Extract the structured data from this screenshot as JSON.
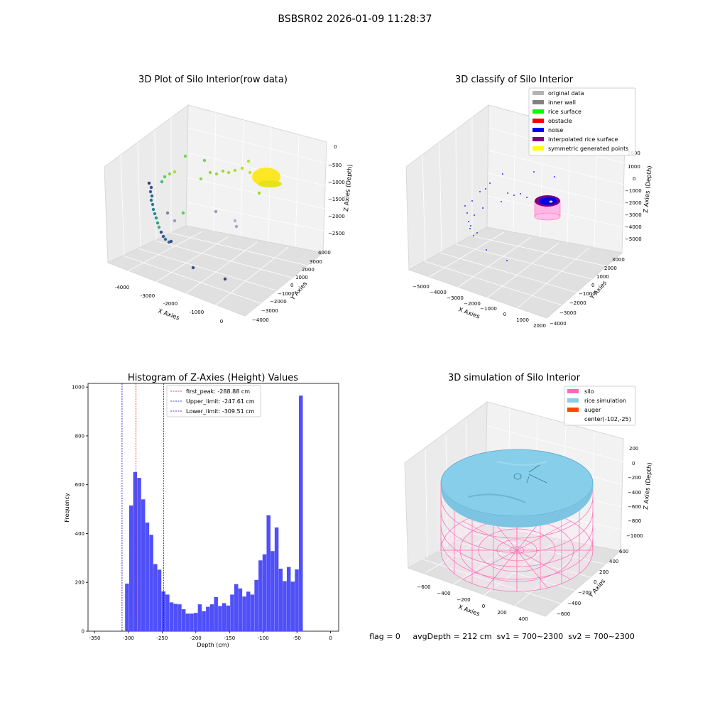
{
  "suptitle": "BSBSR02 2026-01-09 11:28:37",
  "colors": {
    "hist_bar": "#5050f8",
    "first_peak_line": "#ff0000",
    "limit_line": "#0000cc",
    "pane_light": "#f2f2f2",
    "pane_mid": "#ebebeb",
    "pane_dark": "#e0e0e0",
    "silo": "#ff69b4",
    "rice_simulation": "#87ceeb",
    "auger": "#ff4500"
  },
  "chart_data": [
    {
      "type": "scatter",
      "projection": "3d",
      "title": "3D Plot of Silo Interior(row data)",
      "xlabel": "X Axies",
      "ylabel": "Y Axies",
      "zlabel": "Z Axies (Depth)",
      "x_ticks": [
        "-4000",
        "-3000",
        "-2000",
        "-1000",
        "0"
      ],
      "y_ticks": [
        "4000",
        "3000",
        "2000",
        "1000",
        "0",
        "−1000",
        "−2000",
        "−3000",
        "−4000"
      ],
      "z_ticks": [
        "0",
        "−500",
        "−1000",
        "−1500",
        "−2000",
        "−2500"
      ],
      "colormap": "viridis",
      "grid": true
    },
    {
      "type": "scatter",
      "projection": "3d",
      "title": "3D classify of Silo Interior",
      "xlabel": "X Axies",
      "ylabel": "Y Axies",
      "zlabel": "Z Axies (Depth)",
      "x_ticks": [
        "−5000",
        "−4000",
        "−3000",
        "−2000",
        "−1000",
        "0",
        "1000",
        "2000"
      ],
      "y_ticks": [
        "3000",
        "2000",
        "1000",
        "0",
        "−1000",
        "−2000",
        "−3000",
        "−4000"
      ],
      "z_ticks": [
        "2000",
        "1000",
        "0",
        "−1000",
        "−2000",
        "−3000",
        "−4000",
        "−5000"
      ],
      "legend_position": "top-right",
      "legend": [
        {
          "label": "original data",
          "color": "#b3b3b3"
        },
        {
          "label": "inner wall",
          "color": "#808080"
        },
        {
          "label": "rice surface",
          "color": "#00ff00"
        },
        {
          "label": "obstacle",
          "color": "#ff0000"
        },
        {
          "label": "noise",
          "color": "#0000ff"
        },
        {
          "label": "interpolated rice surface",
          "color": "#800080"
        },
        {
          "label": "symmetric generated points",
          "color": "#ffff00"
        }
      ],
      "grid": true
    },
    {
      "type": "bar",
      "title": "Histogram of Z-Axies (Height) Values",
      "xlabel": "Depth (cm)",
      "ylabel": "Frequency",
      "xlim": [
        -360,
        12
      ],
      "ylim": [
        0,
        1015
      ],
      "x_ticks": [
        -350,
        -300,
        -250,
        -200,
        -150,
        -100,
        -50,
        0
      ],
      "y_ticks": [
        0,
        200,
        400,
        600,
        800,
        1000
      ],
      "bin_start": -305,
      "bin_width": 6,
      "values": [
        195,
        515,
        652,
        628,
        540,
        445,
        395,
        275,
        252,
        163,
        150,
        118,
        112,
        110,
        90,
        72,
        72,
        75,
        110,
        82,
        100,
        110,
        140,
        103,
        115,
        105,
        150,
        193,
        175,
        142,
        162,
        150,
        210,
        290,
        315,
        475,
        328,
        425,
        256,
        205,
        263,
        203,
        253,
        965
      ],
      "lines": [
        {
          "label": "first_peak: -288.88 cm",
          "x": -288.88,
          "color": "#ff0000"
        },
        {
          "label": "Upper_limit: -247.61 cm",
          "x": -247.61,
          "color": "#0000cc"
        },
        {
          "label": "Lower_limit: -309.51 cm",
          "x": -309.51,
          "color": "#0000cc"
        }
      ],
      "legend_position": "top-center",
      "grid": false
    },
    {
      "type": "surface",
      "projection": "3d",
      "title": "3D simulation of Silo Interior",
      "xlabel": "X Axies",
      "ylabel": "Y Axies",
      "zlabel": "Z Axies (Depth)",
      "x_ticks": [
        "−600",
        "−400",
        "−200",
        "0",
        "200",
        "400"
      ],
      "y_ticks": [
        "600",
        "400",
        "200",
        "0",
        "−200",
        "−400",
        "−600"
      ],
      "z_ticks": [
        "200",
        "0",
        "−200",
        "−400",
        "−600",
        "−800",
        "−1000"
      ],
      "legend_position": "top-right",
      "legend": [
        {
          "label": "silo",
          "color": "#ff69b4"
        },
        {
          "label": "rice simulation",
          "color": "#87ceeb"
        },
        {
          "label": "auger",
          "color": "#ff4500"
        },
        {
          "label": "center(-102,-25)",
          "color": ""
        }
      ],
      "grid": true
    }
  ],
  "status_line": "flag = 0     avgDepth = 212 cm  sv1 = 700~2300  sv2 = 700~2300"
}
